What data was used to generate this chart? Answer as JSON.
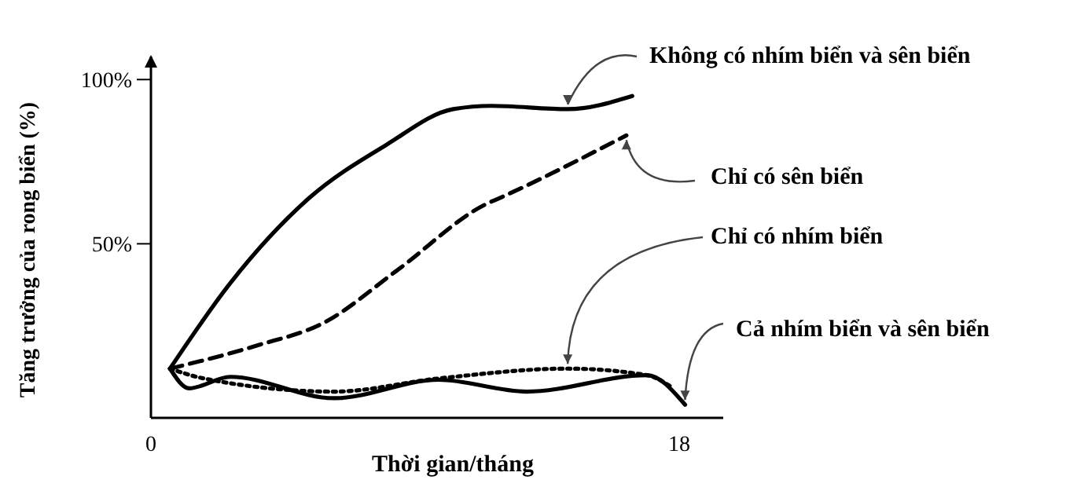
{
  "chart_data": {
    "type": "line",
    "xlabel": "Thời gian/tháng",
    "ylabel": "Tăng trưởng của rong biển (%)",
    "xlim": [
      0,
      19.5
    ],
    "xticks": [
      0,
      18
    ],
    "ylim": [
      -3,
      107
    ],
    "yticks": [
      {
        "value": 50,
        "label": "50%"
      },
      {
        "value": 100,
        "label": "100%"
      }
    ],
    "grid": false,
    "marker": "none",
    "series": [
      {
        "name": "Không có nhím biển và sên biển",
        "color": "#000000",
        "line_style": "solid",
        "x": [
          0.65,
          2.7,
          5.4,
          8.0,
          10.3,
          11.6,
          14.2,
          16.4
        ],
        "values": [
          12,
          38,
          64,
          80,
          91,
          92,
          91,
          95
        ]
      },
      {
        "name": "Chỉ có sên biển",
        "color": "#000000",
        "line_style": "dashed",
        "x": [
          0.65,
          3.6,
          5.9,
          8.4,
          11.4,
          11.9,
          16.2
        ],
        "values": [
          12,
          19,
          26,
          42,
          62,
          64,
          83
        ]
      },
      {
        "name": "Chỉ có nhím biển",
        "color": "#000000",
        "line_style": "dotted",
        "x": [
          0.65,
          1.8,
          6.25,
          9.8,
          14.2,
          16.9,
          17.8
        ],
        "values": [
          12,
          9,
          5,
          9,
          12,
          10,
          6
        ]
      },
      {
        "name": "Cả nhím biển và sên biển",
        "color": "#000000",
        "line_style": "solid",
        "x": [
          0.65,
          1.3,
          2.7,
          6.25,
          9.8,
          12.8,
          16.9,
          18.2
        ],
        "values": [
          12,
          6,
          9.5,
          3,
          8.6,
          5,
          10,
          1
        ]
      }
    ]
  }
}
